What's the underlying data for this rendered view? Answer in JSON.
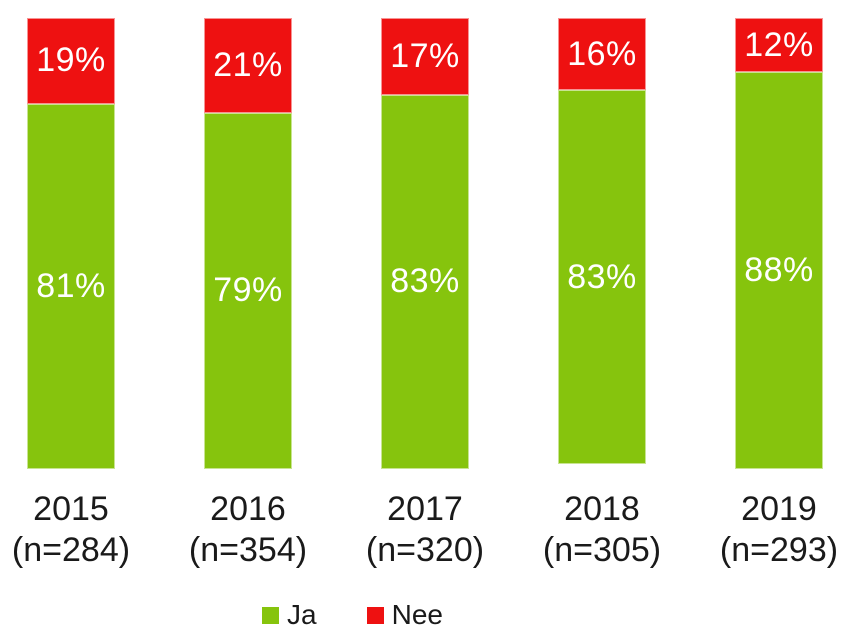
{
  "chart_data": {
    "type": "bar",
    "stacked": true,
    "orientation": "vertical",
    "title": "",
    "xlabel": "",
    "ylabel": "",
    "ylim": [
      0,
      100
    ],
    "grid": false,
    "legend_position": "bottom",
    "categories": [
      "2015",
      "2016",
      "2017",
      "2018",
      "2019"
    ],
    "category_sublabels": [
      "(n=284)",
      "(n=354)",
      "(n=320)",
      "(n=305)",
      "(n=293)"
    ],
    "series": [
      {
        "name": "Ja",
        "color": "#86C40D",
        "values": [
          81,
          79,
          83,
          83,
          88
        ]
      },
      {
        "name": "Nee",
        "color": "#EE1111",
        "values": [
          19,
          21,
          17,
          16,
          12
        ]
      }
    ],
    "value_label_suffix": "%",
    "value_label_color": "#FFFFFF",
    "axis_label_color": "#1A1A1A"
  },
  "legend": {
    "items": [
      {
        "label": "Ja",
        "color": "#86C40D"
      },
      {
        "label": "Nee",
        "color": "#EE1111"
      }
    ]
  }
}
